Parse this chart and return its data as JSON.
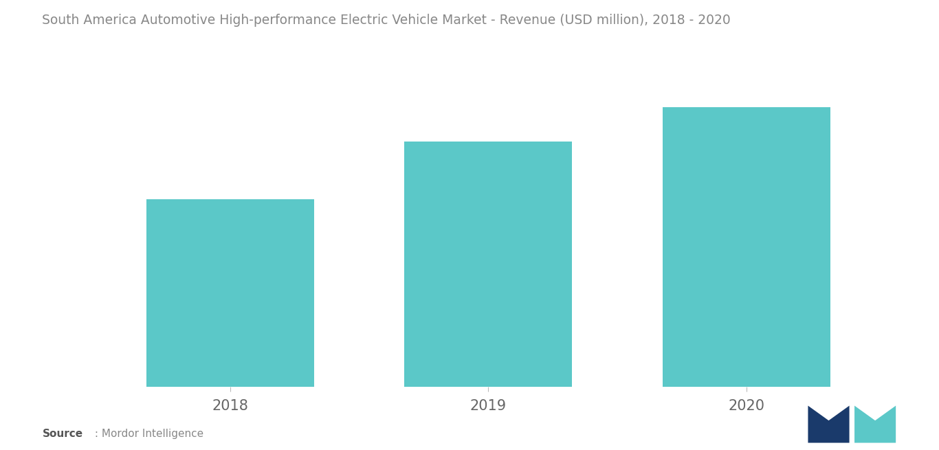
{
  "title": "South America Automotive High-performance Electric Vehicle Market - Revenue (USD million), 2018 - 2020",
  "categories": [
    "2018",
    "2019",
    "2020"
  ],
  "values": [
    55,
    72,
    82
  ],
  "bar_color": "#5BC8C8",
  "background_color": "#ffffff",
  "title_color": "#888888",
  "title_fontsize": 13.5,
  "tick_label_fontsize": 15,
  "tick_label_color": "#666666",
  "source_bold": "Source",
  "source_rest": " : Mordor Intelligence",
  "ylim": [
    0,
    95
  ],
  "bar_width": 0.65
}
